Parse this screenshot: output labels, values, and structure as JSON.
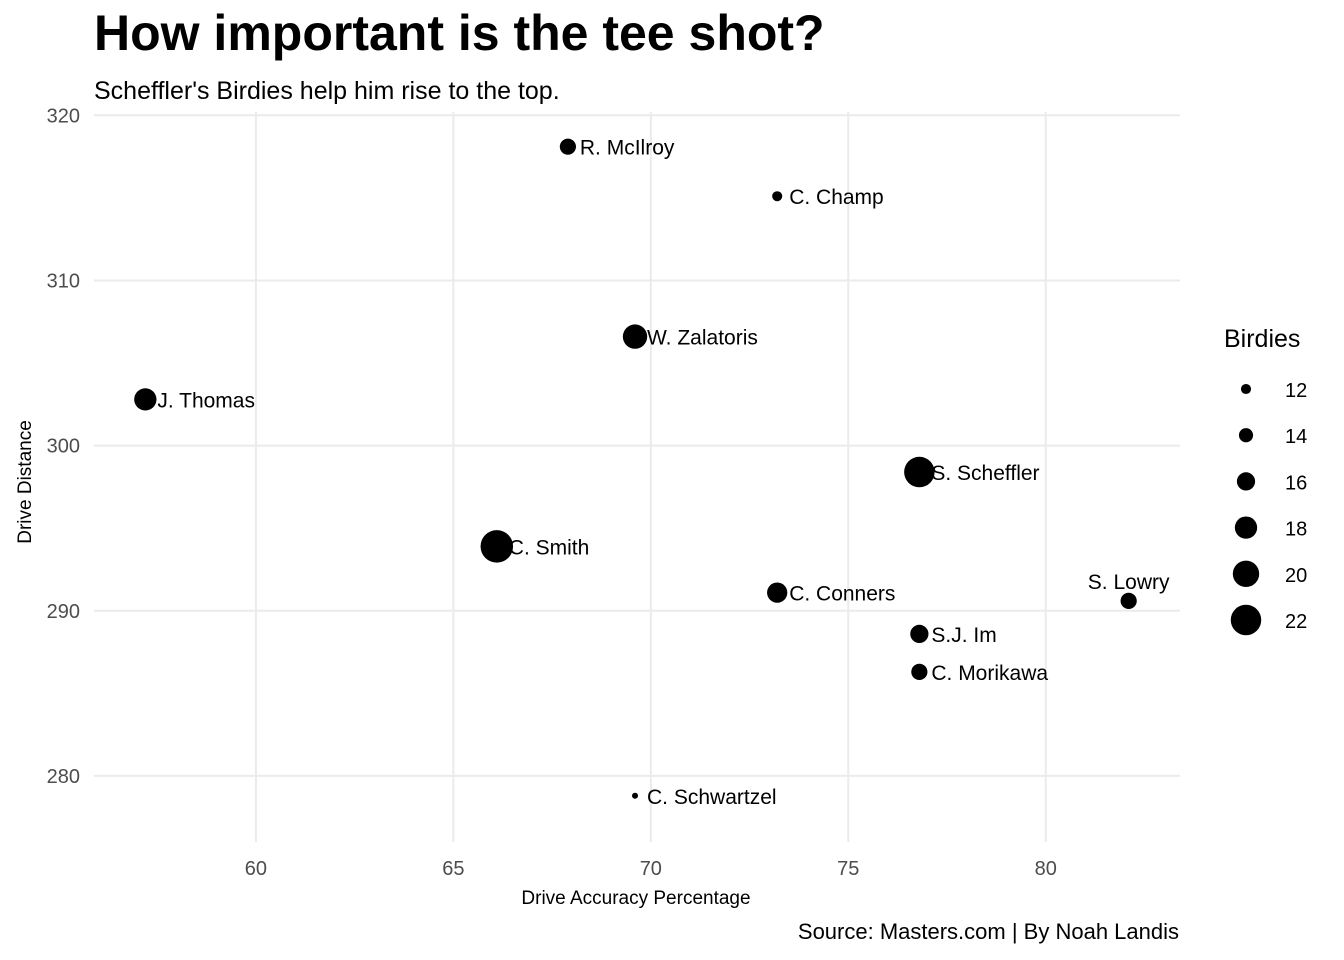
{
  "chart_data": {
    "type": "scatter",
    "title": "How important is the tee shot?",
    "subtitle": "Scheffler's Birdies help him rise to the top.",
    "caption": "Source: Masters.com | By Noah Landis",
    "xlabel": "Drive Accuracy Percentage",
    "ylabel": "Drive Distance",
    "xlim": [
      55.9,
      83.4
    ],
    "ylim": [
      276.0,
      320.2
    ],
    "xticks": [
      60,
      65,
      70,
      75,
      80
    ],
    "yticks": [
      280,
      290,
      300,
      310,
      320
    ],
    "grid": true,
    "size_legend": {
      "title": "Birdies",
      "placement": "right",
      "values": [
        12,
        14,
        16,
        18,
        20,
        22
      ]
    },
    "points": [
      {
        "label": "R. McIlroy",
        "x": 67.9,
        "y": 318.1,
        "birdies": 15,
        "label_side": "right"
      },
      {
        "label": "C. Champ",
        "x": 73.2,
        "y": 315.1,
        "birdies": 12,
        "label_side": "right"
      },
      {
        "label": "W. Zalatoris",
        "x": 69.6,
        "y": 306.6,
        "birdies": 19,
        "label_side": "right"
      },
      {
        "label": "J. Thomas",
        "x": 57.2,
        "y": 302.8,
        "birdies": 18,
        "label_side": "right"
      },
      {
        "label": "S. Scheffler",
        "x": 76.8,
        "y": 298.4,
        "birdies": 22,
        "label_side": "right"
      },
      {
        "label": "C. Smith",
        "x": 66.1,
        "y": 293.9,
        "birdies": 23,
        "label_side": "right"
      },
      {
        "label": "C. Conners",
        "x": 73.2,
        "y": 291.1,
        "birdies": 17,
        "label_side": "right"
      },
      {
        "label": "S. Lowry",
        "x": 82.1,
        "y": 290.6,
        "birdies": 15,
        "label_side": "above"
      },
      {
        "label": "S.J. Im",
        "x": 76.8,
        "y": 288.6,
        "birdies": 16,
        "label_side": "right"
      },
      {
        "label": "C. Morikawa",
        "x": 76.8,
        "y": 286.3,
        "birdies": 15,
        "label_side": "right"
      },
      {
        "label": "C. Schwartzel",
        "x": 69.6,
        "y": 278.8,
        "birdies": 10,
        "label_side": "right"
      }
    ]
  }
}
